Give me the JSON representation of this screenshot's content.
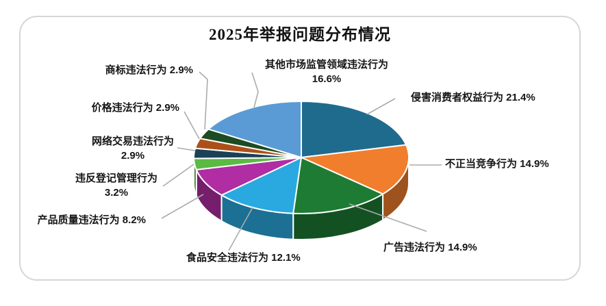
{
  "chart_data": {
    "type": "pie",
    "style": "3d-pie",
    "title": "2025年举报问题分布情况",
    "unit": "%",
    "start_angle_deg": 0,
    "direction": "clockwise",
    "legend": "none",
    "data_labels": "category name + percent, outside with gray leader lines",
    "total": 100.0,
    "slices": [
      {
        "key": "consumer-rights-infringement",
        "name": "侵害消费者权益行为",
        "value": 21.4,
        "color": "#1f6b8e",
        "label_lines": [
          "侵害消费者权益行为 21.4%"
        ]
      },
      {
        "key": "unfair-competition",
        "name": "不正当竞争行为",
        "value": 14.9,
        "color": "#f07e2d",
        "label_lines": [
          "不正当竞争行为 14.9%"
        ]
      },
      {
        "key": "advertising-violation",
        "name": "广告违法行为",
        "value": 14.9,
        "color": "#1e7b33",
        "label_lines": [
          "广告违法行为 14.9%"
        ]
      },
      {
        "key": "food-safety-violation",
        "name": "食品安全违法行为",
        "value": 12.1,
        "color": "#29a9df",
        "label_lines": [
          "食品安全违法行为 12.1%"
        ]
      },
      {
        "key": "product-quality-violation",
        "name": "产品质量违法行为",
        "value": 8.2,
        "color": "#b02da4",
        "label_lines": [
          "产品质量违法行为 8.2%"
        ]
      },
      {
        "key": "registration-violation",
        "name": "违反登记管理行为",
        "value": 3.2,
        "color": "#5aba44",
        "label_lines": [
          "违反登记管理行为",
          "3.2%"
        ]
      },
      {
        "key": "online-trading-violation",
        "name": "网络交易违法行为",
        "value": 2.9,
        "color": "#1a4156",
        "label_lines": [
          "网络交易违法行为",
          "2.9%"
        ]
      },
      {
        "key": "price-violation",
        "name": "价格违法行为",
        "value": 2.9,
        "color": "#ac5019",
        "label_lines": [
          "价格违法行为 2.9%"
        ]
      },
      {
        "key": "trademark-violation",
        "name": "商标违法行为",
        "value": 2.9,
        "color": "#1d4b22",
        "label_lines": [
          "商标违法行为 2.9%"
        ]
      },
      {
        "key": "other-market-regulation",
        "name": "其他市场监管领域违法行为",
        "value": 16.6,
        "color": "#5b9bd5",
        "label_lines": [
          "其他市场监管领域违法行为",
          "16.6%"
        ]
      }
    ],
    "frame_border_color": "#d6d6d6",
    "leader_line_color": "#ababab",
    "slice_border_color": "#ffffff"
  }
}
